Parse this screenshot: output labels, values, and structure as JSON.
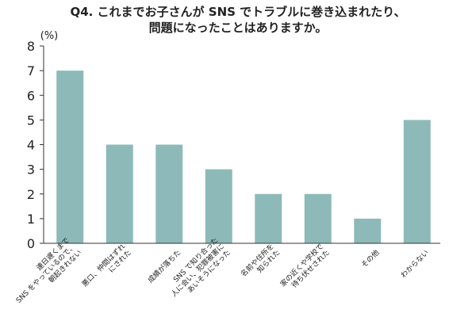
{
  "title_lines": [
    "Q4. これまでお子さんが SNS でトラブルに巻き込まれたり、",
    "問題になったことはありますか。"
  ],
  "colors": {
    "bar": "#8dbab8",
    "axis": "#333333"
  },
  "chart_data": {
    "type": "bar",
    "title": "Q4. これまでお子さんが SNS でトラブルに巻き込まれたり、問題になったことはありますか。",
    "ylabel": "(%)",
    "ylim": [
      0,
      8
    ],
    "yticks": [
      0,
      1,
      2,
      3,
      4,
      5,
      6,
      7,
      8
    ],
    "grid": false,
    "categories": [
      [
        "連日遅くまで",
        "SNS をやっているので、",
        "朝起きれない"
      ],
      [
        "悪口、仲間はずれ",
        "にされた"
      ],
      [
        "成績が落ちた"
      ],
      [
        "SNS で知り合った",
        "人に会い、犯罪被害に",
        "あいそうになった"
      ],
      [
        "名前や住所を",
        "知られた"
      ],
      [
        "家の近くや学校で",
        "待ち伏せされた"
      ],
      [
        "その他"
      ],
      [
        "わからない"
      ]
    ],
    "values": [
      7,
      4,
      4,
      3,
      2,
      2,
      1,
      5
    ]
  }
}
